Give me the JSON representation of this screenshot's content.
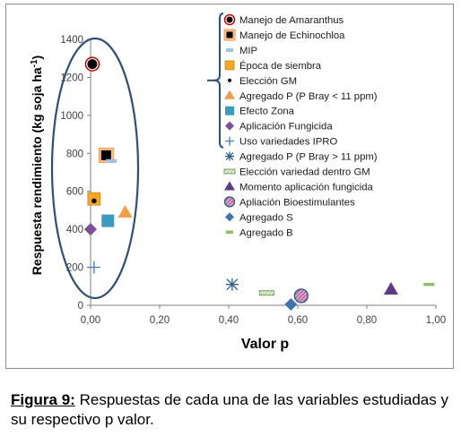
{
  "chart_data": {
    "type": "scatter",
    "title": "",
    "xlabel": "Valor p",
    "ylabel": "Respuesta rendimiento (kg soja ha",
    "ylabel_sup": "-1",
    "ylabel_close": ")",
    "xlim": [
      0,
      1
    ],
    "ylim": [
      0,
      1400
    ],
    "x_ticks": [
      0,
      0.2,
      0.4,
      0.6,
      0.8,
      1.0
    ],
    "x_tick_labels": [
      "0,00",
      "0,20",
      "0,40",
      "0,60",
      "0,80",
      "1,00"
    ],
    "y_ticks": [
      0,
      200,
      400,
      600,
      800,
      1000,
      1200,
      1400
    ],
    "y_tick_labels": [
      "0",
      "200",
      "400",
      "600",
      "800",
      "1000",
      "1200",
      "1400"
    ],
    "grid": false,
    "legend_position": "right",
    "series": [
      {
        "name": "Manejo de Amaranthus",
        "marker": "circle-black-ring",
        "points": [
          [
            0.005,
            1270
          ]
        ]
      },
      {
        "name": "Manejo de Echinochloa",
        "marker": "square-black-ring",
        "points": [
          [
            0.045,
            790
          ]
        ]
      },
      {
        "name": "MIP",
        "marker": "dash-lightblue",
        "points": [
          [
            0.06,
            760
          ]
        ]
      },
      {
        "name": "Época de siembra",
        "marker": "square-orange",
        "points": [
          [
            0.01,
            560
          ]
        ]
      },
      {
        "name": "Elección GM",
        "marker": "dot-black",
        "points": [
          [
            0.01,
            550
          ]
        ]
      },
      {
        "name": "Agregado P (P Bray < 11 ppm)",
        "marker": "triangle-orange",
        "points": [
          [
            0.1,
            490
          ]
        ]
      },
      {
        "name": "Efecto Zona",
        "marker": "square-teal",
        "points": [
          [
            0.05,
            445
          ]
        ]
      },
      {
        "name": "Aplicación Fungicida",
        "marker": "diamond-purple",
        "points": [
          [
            0.0,
            400
          ]
        ]
      },
      {
        "name": "Uso variedades IPRO",
        "marker": "plus-blue",
        "points": [
          [
            0.01,
            200
          ]
        ]
      },
      {
        "name": "Agregado P (P Bray > 11 ppm)",
        "marker": "asterisk-blue",
        "points": [
          [
            0.41,
            110
          ]
        ]
      },
      {
        "name": "Elección variedad dentro GM",
        "marker": "dash-green",
        "points": [
          [
            0.51,
            65
          ]
        ]
      },
      {
        "name": "Momento aplicación fungicida",
        "marker": "triangle-purple",
        "points": [
          [
            0.87,
            85
          ]
        ]
      },
      {
        "name": "Apliación Bioestimulantes",
        "marker": "circle-hatched",
        "points": [
          [
            0.61,
            50
          ]
        ]
      },
      {
        "name": "Agregado S",
        "marker": "diamond-blue",
        "points": [
          [
            0.58,
            5
          ]
        ]
      },
      {
        "name": "Agregado B",
        "marker": "dash-lightgreen",
        "points": [
          [
            0.98,
            110
          ]
        ]
      }
    ],
    "bracketed_legend_count": 9
  },
  "colors": {
    "orange": "#f5a623",
    "orange_triangle": "#f29d4a",
    "teal": "#3a9bc1",
    "purple": "#7a4f9a",
    "blue": "#4f81bd",
    "steel_blue": "#2f5f8a",
    "green": "#77a35a",
    "light_blue": "#9dc3e6",
    "ellipse": "#2e4f77"
  },
  "caption": {
    "label": "Figura 9:",
    "text": " Respuestas de cada una de las variables estudiadas y su respectivo p valor."
  }
}
